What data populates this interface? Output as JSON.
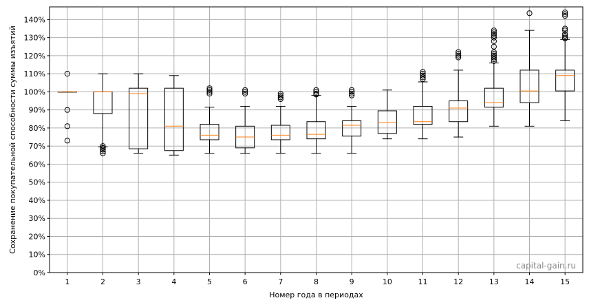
{
  "chart_data": {
    "type": "box",
    "xlabel": "Номер года в периодах",
    "ylabel": "Сохранение покупательной способности суммы изъятий",
    "ylim": [
      0,
      147
    ],
    "yticks": [
      0,
      10,
      20,
      30,
      40,
      50,
      60,
      70,
      80,
      90,
      100,
      110,
      120,
      130,
      140
    ],
    "ytick_labels": [
      "0%",
      "10%",
      "20%",
      "30%",
      "40%",
      "50%",
      "60%",
      "70%",
      "80%",
      "90%",
      "100%",
      "110%",
      "120%",
      "130%",
      "140%"
    ],
    "grid": true,
    "box_color": "#000000",
    "median_color": "#ff7f0e",
    "grid_color": "#b0b0b0",
    "categories": [
      "1",
      "2",
      "3",
      "4",
      "5",
      "6",
      "7",
      "8",
      "9",
      "10",
      "11",
      "12",
      "13",
      "14",
      "15"
    ],
    "boxes": [
      {
        "whislo": 100,
        "q1": 100,
        "med": 100,
        "q3": 100,
        "whishi": 100,
        "fliers": [
          110,
          90,
          81,
          73
        ]
      },
      {
        "whislo": 69.5,
        "q1": 88,
        "med": 100,
        "q3": 100,
        "whishi": 110,
        "fliers": [
          70,
          69,
          68,
          67,
          66
        ]
      },
      {
        "whislo": 66,
        "q1": 68.5,
        "med": 99,
        "q3": 102,
        "whishi": 110,
        "fliers": []
      },
      {
        "whislo": 65,
        "q1": 67.5,
        "med": 81,
        "q3": 102,
        "whishi": 109,
        "fliers": []
      },
      {
        "whislo": 66,
        "q1": 73.5,
        "med": 76,
        "q3": 82,
        "whishi": 91.5,
        "fliers": [
          99,
          100,
          101,
          102
        ]
      },
      {
        "whislo": 66,
        "q1": 69,
        "med": 75,
        "q3": 81,
        "whishi": 92,
        "fliers": [
          99,
          100,
          101
        ]
      },
      {
        "whislo": 66,
        "q1": 73.5,
        "med": 76,
        "q3": 81.5,
        "whishi": 92,
        "fliers": [
          96,
          97,
          98,
          99
        ]
      },
      {
        "whislo": 66,
        "q1": 74,
        "med": 76.5,
        "q3": 83.5,
        "whishi": 98,
        "fliers": [
          98.5,
          99,
          100,
          101
        ]
      },
      {
        "whislo": 66,
        "q1": 75.5,
        "med": 81.5,
        "q3": 84,
        "whishi": 92,
        "fliers": [
          98,
          99,
          100,
          101
        ]
      },
      {
        "whislo": 74,
        "q1": 77,
        "med": 83,
        "q3": 89.5,
        "whishi": 101,
        "fliers": []
      },
      {
        "whislo": 74,
        "q1": 82,
        "med": 83.5,
        "q3": 92,
        "whishi": 105.5,
        "fliers": [
          107,
          108,
          109,
          110,
          111
        ]
      },
      {
        "whislo": 75,
        "q1": 83.5,
        "med": 91,
        "q3": 95,
        "whishi": 112,
        "fliers": [
          119,
          120,
          121,
          122
        ]
      },
      {
        "whislo": 81,
        "q1": 91.5,
        "med": 94,
        "q3": 102,
        "whishi": 116,
        "fliers": [
          117,
          118,
          119,
          120,
          121,
          122,
          125,
          128,
          130,
          131,
          132,
          133,
          134
        ]
      },
      {
        "whislo": 81,
        "q1": 94,
        "med": 100.5,
        "q3": 112,
        "whishi": 134,
        "fliers": [
          143.5
        ]
      },
      {
        "whislo": 84,
        "q1": 100.5,
        "med": 109,
        "q3": 112,
        "whishi": 129,
        "fliers": [
          129.5,
          130,
          131,
          132,
          134,
          135,
          142,
          143,
          144
        ]
      }
    ]
  },
  "watermark": "capital-gain.ru"
}
